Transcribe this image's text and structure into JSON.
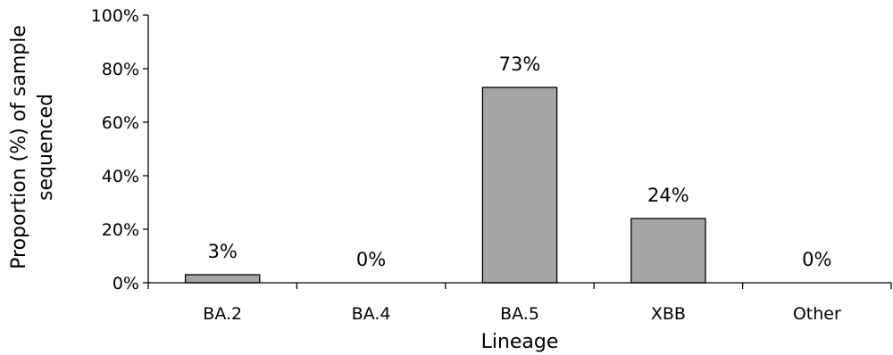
{
  "chart_data": {
    "type": "bar",
    "categories": [
      "BA.2",
      "BA.4",
      "BA.5",
      "XBB",
      "Other"
    ],
    "values": [
      3,
      0,
      73,
      24,
      0
    ],
    "data_labels": [
      "3%",
      "0%",
      "73%",
      "24%",
      "0%"
    ],
    "xlabel": "Lineage",
    "ylabel_lines": [
      "Proportion (%) of sample",
      "sequenced"
    ],
    "ylim": [
      0,
      100
    ],
    "yticks": [
      0,
      20,
      40,
      60,
      80,
      100
    ],
    "ytick_labels": [
      "0%",
      "20%",
      "40%",
      "60%",
      "80%",
      "100%"
    ],
    "grid": false,
    "legend": "none",
    "colors": {
      "bar_fill": "#a6a6a6",
      "bar_stroke": "#000000",
      "axis": "#000000"
    }
  }
}
